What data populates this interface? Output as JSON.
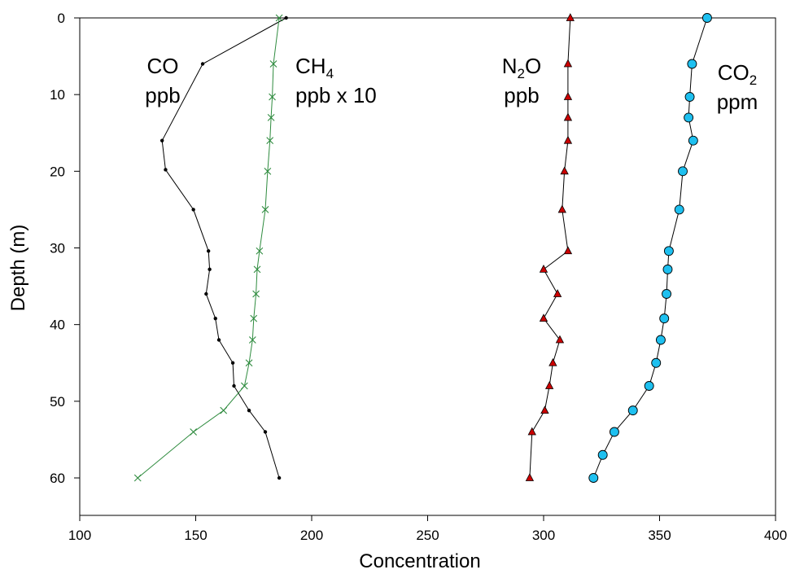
{
  "chart_data": {
    "type": "line",
    "xlabel": "Concentration",
    "ylabel": "Depth (m)",
    "xlim": [
      100,
      400
    ],
    "ylim": [
      65,
      0
    ],
    "y_inverted": true,
    "x_ticks": [
      100,
      150,
      200,
      250,
      300,
      350,
      400
    ],
    "y_ticks": [
      0,
      10,
      20,
      30,
      40,
      50,
      60
    ],
    "grid": false,
    "legend": "none",
    "series": [
      {
        "key": "co",
        "label_main": "CO",
        "label_sub": "",
        "label_unit": "ppb",
        "color": "#000000",
        "marker": "dot",
        "points": [
          {
            "x": 189,
            "y": 0
          },
          {
            "x": 153,
            "y": 6
          },
          {
            "x": 135.5,
            "y": 16
          },
          {
            "x": 137,
            "y": 19.8
          },
          {
            "x": 149,
            "y": 25
          },
          {
            "x": 155.5,
            "y": 30.4
          },
          {
            "x": 156,
            "y": 32.8
          },
          {
            "x": 154.5,
            "y": 36
          },
          {
            "x": 158.5,
            "y": 39.2
          },
          {
            "x": 160,
            "y": 42
          },
          {
            "x": 166,
            "y": 45
          },
          {
            "x": 166.5,
            "y": 48
          },
          {
            "x": 173,
            "y": 51.2
          },
          {
            "x": 180,
            "y": 54
          },
          {
            "x": 186,
            "y": 60
          }
        ]
      },
      {
        "key": "ch4",
        "label_main": "CH",
        "label_sub": "4",
        "label_unit": "ppb x 10",
        "color": "#2e8b3e",
        "marker": "x",
        "points": [
          {
            "x": 186,
            "y": 0
          },
          {
            "x": 183.5,
            "y": 6
          },
          {
            "x": 183,
            "y": 10.3
          },
          {
            "x": 182.5,
            "y": 13
          },
          {
            "x": 182,
            "y": 16
          },
          {
            "x": 181,
            "y": 20
          },
          {
            "x": 180,
            "y": 25
          },
          {
            "x": 177.5,
            "y": 30.4
          },
          {
            "x": 176.5,
            "y": 32.8
          },
          {
            "x": 176,
            "y": 36
          },
          {
            "x": 175,
            "y": 39.2
          },
          {
            "x": 174.5,
            "y": 42
          },
          {
            "x": 173,
            "y": 45
          },
          {
            "x": 171,
            "y": 48
          },
          {
            "x": 162,
            "y": 51.2
          },
          {
            "x": 149,
            "y": 54
          },
          {
            "x": 125,
            "y": 60
          }
        ]
      },
      {
        "key": "n2o",
        "label_main": "N",
        "label_sub": "2",
        "label_tail": "O",
        "label_unit": "ppb",
        "color": "#000000",
        "marker_fill": "#cc0000",
        "marker": "triangle",
        "points": [
          {
            "x": 311.5,
            "y": 0
          },
          {
            "x": 310.5,
            "y": 6
          },
          {
            "x": 310.5,
            "y": 10.3
          },
          {
            "x": 310.5,
            "y": 13
          },
          {
            "x": 310.5,
            "y": 16
          },
          {
            "x": 309,
            "y": 20
          },
          {
            "x": 308,
            "y": 25
          },
          {
            "x": 310.5,
            "y": 30.4
          },
          {
            "x": 300,
            "y": 32.8
          },
          {
            "x": 306,
            "y": 36
          },
          {
            "x": 300,
            "y": 39.2
          },
          {
            "x": 307,
            "y": 42
          },
          {
            "x": 304,
            "y": 45
          },
          {
            "x": 302.5,
            "y": 48
          },
          {
            "x": 300.5,
            "y": 51.2
          },
          {
            "x": 295,
            "y": 54
          },
          {
            "x": 294,
            "y": 60
          }
        ]
      },
      {
        "key": "co2",
        "label_main": "CO",
        "label_sub": "2",
        "label_unit": "ppm",
        "color": "#000000",
        "marker_fill": "#1ec0f0",
        "marker": "circle",
        "points": [
          {
            "x": 370.5,
            "y": 0
          },
          {
            "x": 364,
            "y": 6
          },
          {
            "x": 363,
            "y": 10.3
          },
          {
            "x": 362.5,
            "y": 13
          },
          {
            "x": 364.5,
            "y": 16
          },
          {
            "x": 360,
            "y": 20
          },
          {
            "x": 358.5,
            "y": 25
          },
          {
            "x": 354,
            "y": 30.4
          },
          {
            "x": 353.5,
            "y": 32.8
          },
          {
            "x": 353,
            "y": 36
          },
          {
            "x": 352,
            "y": 39.2
          },
          {
            "x": 350.5,
            "y": 42
          },
          {
            "x": 348.5,
            "y": 45
          },
          {
            "x": 345.5,
            "y": 48
          },
          {
            "x": 338.5,
            "y": 51.2
          },
          {
            "x": 330.5,
            "y": 54
          },
          {
            "x": 325.5,
            "y": 57
          },
          {
            "x": 321.5,
            "y": 60
          }
        ]
      }
    ]
  }
}
